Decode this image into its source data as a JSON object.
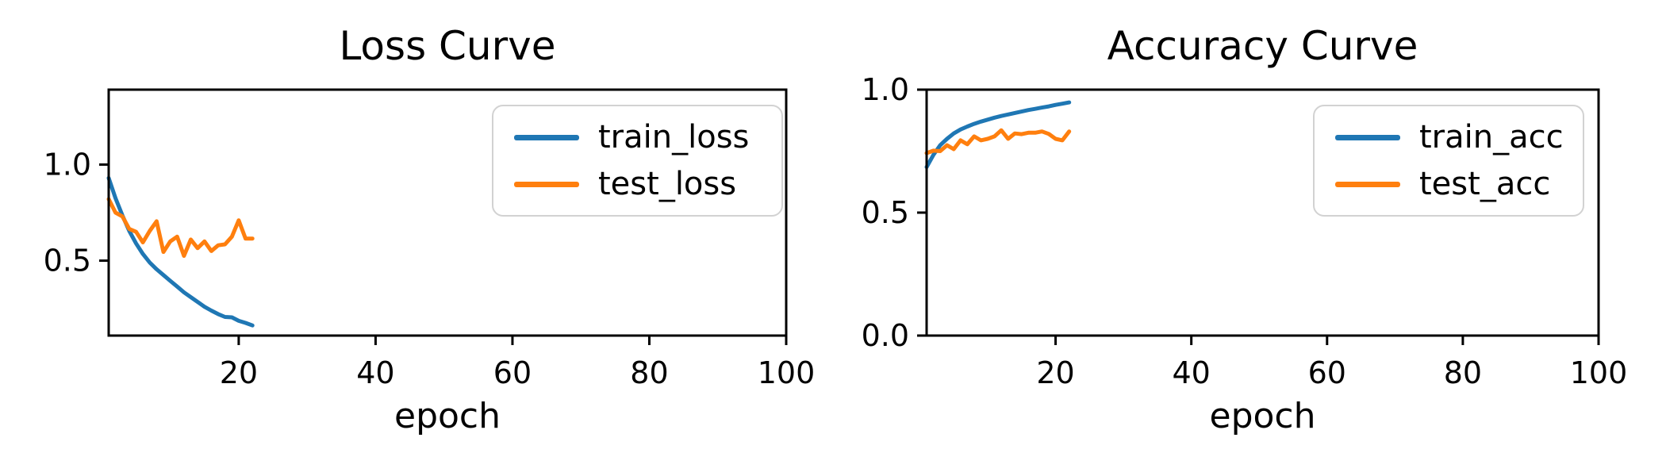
{
  "chart_data": [
    {
      "type": "line",
      "title": "Loss Curve",
      "xlabel": "epoch",
      "xlim": [
        1,
        100
      ],
      "ylim": [
        0.11,
        1.39
      ],
      "xticks": [
        20,
        40,
        60,
        80,
        100
      ],
      "xtick_labels": [
        "20",
        "40",
        "60",
        "80",
        "100"
      ],
      "yticks": [
        0.5,
        1.0
      ],
      "ytick_labels": [
        "0.5",
        "1.0"
      ],
      "grid": false,
      "legend_position": "upper right",
      "x": [
        1,
        2,
        3,
        4,
        5,
        6,
        7,
        8,
        9,
        10,
        11,
        12,
        13,
        14,
        15,
        16,
        17,
        18,
        19,
        20,
        21,
        22
      ],
      "series": [
        {
          "name": "train_loss",
          "color": "#1f77b4",
          "y": [
            0.93,
            0.825,
            0.735,
            0.655,
            0.59,
            0.535,
            0.49,
            0.455,
            0.425,
            0.395,
            0.365,
            0.335,
            0.31,
            0.285,
            0.26,
            0.24,
            0.222,
            0.207,
            0.205,
            0.187,
            0.176,
            0.163
          ]
        },
        {
          "name": "test_loss",
          "color": "#ff7f0e",
          "y": [
            0.82,
            0.75,
            0.73,
            0.665,
            0.65,
            0.595,
            0.655,
            0.705,
            0.545,
            0.6,
            0.625,
            0.525,
            0.61,
            0.565,
            0.6,
            0.55,
            0.58,
            0.585,
            0.625,
            0.71,
            0.615,
            0.615
          ]
        }
      ]
    },
    {
      "type": "line",
      "title": "Accuracy Curve",
      "xlabel": "epoch",
      "xlim": [
        1,
        100
      ],
      "ylim": [
        0.0,
        1.0
      ],
      "xticks": [
        20,
        40,
        60,
        80,
        100
      ],
      "xtick_labels": [
        "20",
        "40",
        "60",
        "80",
        "100"
      ],
      "yticks": [
        0.0,
        0.5,
        1.0
      ],
      "ytick_labels": [
        "0.0",
        "0.5",
        "1.0"
      ],
      "grid": false,
      "legend_position": "upper right",
      "x": [
        1,
        2,
        3,
        4,
        5,
        6,
        7,
        8,
        9,
        10,
        11,
        12,
        13,
        14,
        15,
        16,
        17,
        18,
        19,
        20,
        21,
        22
      ],
      "series": [
        {
          "name": "train_acc",
          "color": "#1f77b4",
          "y": [
            0.685,
            0.735,
            0.774,
            0.8,
            0.822,
            0.838,
            0.85,
            0.861,
            0.87,
            0.878,
            0.886,
            0.893,
            0.899,
            0.905,
            0.911,
            0.917,
            0.922,
            0.927,
            0.932,
            0.938,
            0.943,
            0.948
          ]
        },
        {
          "name": "test_acc",
          "color": "#ff7f0e",
          "y": [
            0.742,
            0.752,
            0.75,
            0.774,
            0.758,
            0.794,
            0.778,
            0.81,
            0.794,
            0.8,
            0.81,
            0.835,
            0.8,
            0.822,
            0.819,
            0.825,
            0.825,
            0.83,
            0.82,
            0.8,
            0.794,
            0.83
          ]
        }
      ]
    }
  ],
  "axis_color": "#000000"
}
